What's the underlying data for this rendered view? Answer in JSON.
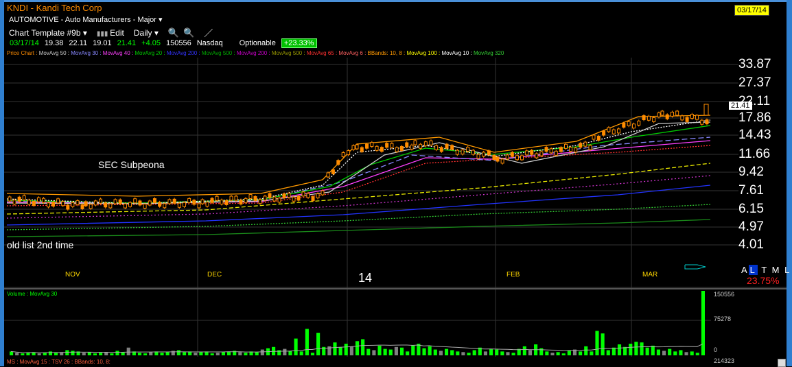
{
  "header": {
    "symbol_title": "KNDI - Kandi Tech Corp",
    "date_badge": "03/17/14",
    "sector": "AUTOMOTIVE - Auto Manufacturers - Major"
  },
  "toolbar": {
    "template_label": "Chart Template #9b",
    "edit_label": "Edit",
    "period_label": "Daily"
  },
  "quote": {
    "date": "03/17/14",
    "open": "19.38",
    "high": "22.11",
    "low": "19.01",
    "close": "21.41",
    "change": "+4.05",
    "volume": "150556",
    "exchange": "Nasdaq",
    "optionable": "Optionable",
    "change_pct": "+23.33%"
  },
  "price_legend": [
    {
      "text": "Price Chart",
      "color": "#ff8c00"
    },
    {
      "text": "MovAvg 50",
      "color": "#cccccc"
    },
    {
      "text": "MovAvg 30",
      "color": "#8888ff"
    },
    {
      "text": "MovAvg 40",
      "color": "#ff40ff"
    },
    {
      "text": "MovAvg 20",
      "color": "#00cc00"
    },
    {
      "text": "MovAvg 200",
      "color": "#3333ff"
    },
    {
      "text": "MovAvg 500",
      "color": "#00aa00"
    },
    {
      "text": "MovAvg 200",
      "color": "#cc00cc"
    },
    {
      "text": "MovAvg 500",
      "color": "#999900"
    },
    {
      "text": "MovAvg 65",
      "color": "#ff3030"
    },
    {
      "text": "MovAvg 6",
      "color": "#ff6060"
    },
    {
      "text": "BBands: 10, 8",
      "color": "#ff9900"
    },
    {
      "text": "MovAvg 100",
      "color": "#ffff00"
    },
    {
      "text": "MovAvg 10",
      "color": "#ffffff"
    },
    {
      "text": "MovAvg 320",
      "color": "#33cc33"
    }
  ],
  "price_axis": [
    "33.87",
    "27.37",
    "22.11",
    "17.86",
    "14.43",
    "11.66",
    "9.42",
    "7.61",
    "6.15",
    "4.97",
    "4.01"
  ],
  "last_price_tag": "21.41",
  "months": [
    "NOV",
    "DEC",
    "14",
    "FEB",
    "MAR"
  ],
  "annotations": {
    "sec": "SEC Subpeona",
    "gold": "old list 2nd time"
  },
  "period_selector": {
    "a": "A",
    "l": "L",
    "t": "T",
    "m": "M",
    "l2": "L"
  },
  "ytd_pct": "23.75%",
  "volume_panel": {
    "legend": "Volume : MovAvg 30",
    "labels": [
      "150556",
      "75278",
      "0"
    ]
  },
  "bottom_legend": "MS : MovAvg 15 : TSV 26 : BBands: 10, 8:",
  "bottom_value": "214323",
  "colors": {
    "up": "#00ff00",
    "down": "#808080",
    "candle": "#ff8c00"
  },
  "volume_bars": [
    6,
    4,
    3,
    4,
    5,
    3,
    4,
    6,
    4,
    5,
    8,
    7,
    6,
    4,
    5,
    3,
    4,
    5,
    3,
    7,
    5,
    12,
    6,
    4,
    3,
    5,
    6,
    4,
    5,
    7,
    8,
    5,
    6,
    4,
    5,
    6,
    3,
    4,
    5,
    6,
    7,
    5,
    4,
    6,
    5,
    9,
    11,
    13,
    8,
    10,
    7,
    26,
    6,
    41,
    4,
    35,
    13,
    14,
    20,
    13,
    18,
    14,
    22,
    25,
    10,
    8,
    15,
    10,
    9,
    13,
    12,
    6,
    16,
    18,
    11,
    14,
    9,
    7,
    10,
    8,
    6,
    5,
    4,
    8,
    12,
    6,
    10,
    9,
    6,
    5,
    4,
    10,
    14,
    8,
    17,
    11,
    6,
    4,
    5,
    3,
    7,
    9,
    6,
    14,
    6,
    38,
    34,
    8,
    12,
    17,
    13,
    18,
    21,
    20,
    12,
    15,
    9,
    7,
    10,
    6,
    8,
    5,
    6,
    4,
    100
  ]
}
